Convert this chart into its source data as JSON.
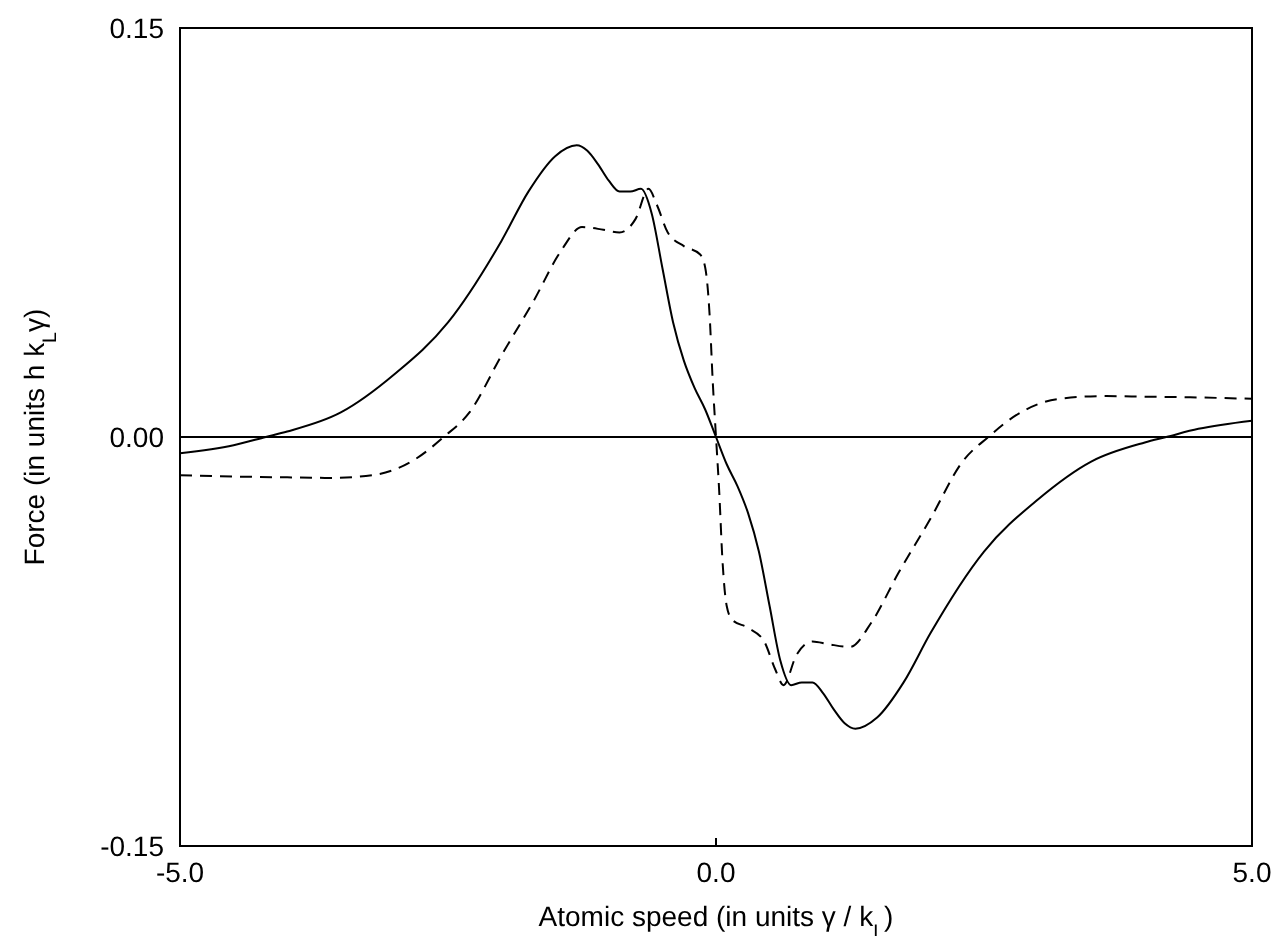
{
  "chart_data": {
    "type": "line",
    "xlabel": "Atomic speed (in units  γ / k$_{L}$)",
    "ylabel": "Force (in units  h k$_{L}$γ)",
    "xlim": [
      -5,
      5
    ],
    "ylim": [
      -0.15,
      0.15
    ],
    "xticks": [
      {
        "value": -5,
        "label": "-5.0"
      },
      {
        "value": 0,
        "label": "0.0"
      },
      {
        "value": 5,
        "label": "5.0"
      }
    ],
    "yticks": [
      -0.15,
      {
        "value": 0,
        "label": "0.00"
      },
      0.15
    ],
    "grid": false,
    "ref_lines": [
      {
        "axis": "y",
        "value": 0,
        "color": "#000000"
      }
    ],
    "series": [
      {
        "color": "#000000",
        "line_style": "solid",
        "x": [
          -5,
          -4.5,
          -4.2,
          -4.0,
          -3.5,
          -3.0,
          -2.5,
          -2.0,
          -1.75,
          -1.5,
          -1.3,
          -1.2,
          -1.1,
          -1.0,
          -0.9,
          -0.8,
          -0.7,
          -0.6,
          -0.5,
          -0.4,
          -0.3,
          -0.2,
          -0.1,
          0,
          0.1,
          0.2,
          0.3,
          0.4,
          0.5,
          0.6,
          0.7,
          0.8,
          0.9,
          1.0,
          1.1,
          1.2,
          1.3,
          1.5,
          1.75,
          2.0,
          2.5,
          3.0,
          3.5,
          4.0,
          4.2,
          4.5,
          5
        ],
        "values": [
          -0.006,
          -0.003,
          0,
          0.002,
          0.009,
          0.023,
          0.042,
          0.072,
          0.09,
          0.103,
          0.107,
          0.105,
          0.1,
          0.094,
          0.09,
          0.09,
          0.091,
          0.082,
          0.062,
          0.042,
          0.028,
          0.018,
          0.01,
          0,
          -0.01,
          -0.018,
          -0.028,
          -0.042,
          -0.062,
          -0.082,
          -0.091,
          -0.09,
          -0.09,
          -0.094,
          -0.1,
          -0.105,
          -0.107,
          -0.103,
          -0.09,
          -0.072,
          -0.042,
          -0.023,
          -0.009,
          -0.002,
          0,
          0.003,
          0.006
        ]
      },
      {
        "color": "#000000",
        "line_style": "dashed",
        "x": [
          -5,
          -4.5,
          -4.0,
          -3.6,
          -3.2,
          -2.8,
          -2.54,
          -2.3,
          -2.0,
          -1.7,
          -1.45,
          -1.25,
          -1.05,
          -0.9,
          -0.75,
          -0.63,
          -0.55,
          -0.45,
          -0.3,
          -0.15,
          -0.1,
          -0.06,
          -0.03,
          0,
          0.03,
          0.06,
          0.1,
          0.15,
          0.3,
          0.45,
          0.55,
          0.63,
          0.75,
          0.9,
          1.05,
          1.25,
          1.45,
          1.7,
          2.0,
          2.3,
          2.54,
          2.8,
          3.2,
          3.6,
          4.0,
          4.5,
          5
        ],
        "values": [
          -0.014,
          -0.0145,
          -0.0148,
          -0.015,
          -0.014,
          -0.008,
          0,
          0.009,
          0.03,
          0.05,
          0.068,
          0.077,
          0.076,
          0.075,
          0.08,
          0.091,
          0.085,
          0.075,
          0.07,
          0.067,
          0.062,
          0.045,
          0.02,
          0,
          -0.02,
          -0.045,
          -0.062,
          -0.067,
          -0.07,
          -0.075,
          -0.085,
          -0.091,
          -0.08,
          -0.075,
          -0.076,
          -0.077,
          -0.068,
          -0.05,
          -0.03,
          -0.009,
          0,
          0.008,
          0.014,
          0.015,
          0.0148,
          0.0145,
          0.014
        ]
      }
    ]
  }
}
